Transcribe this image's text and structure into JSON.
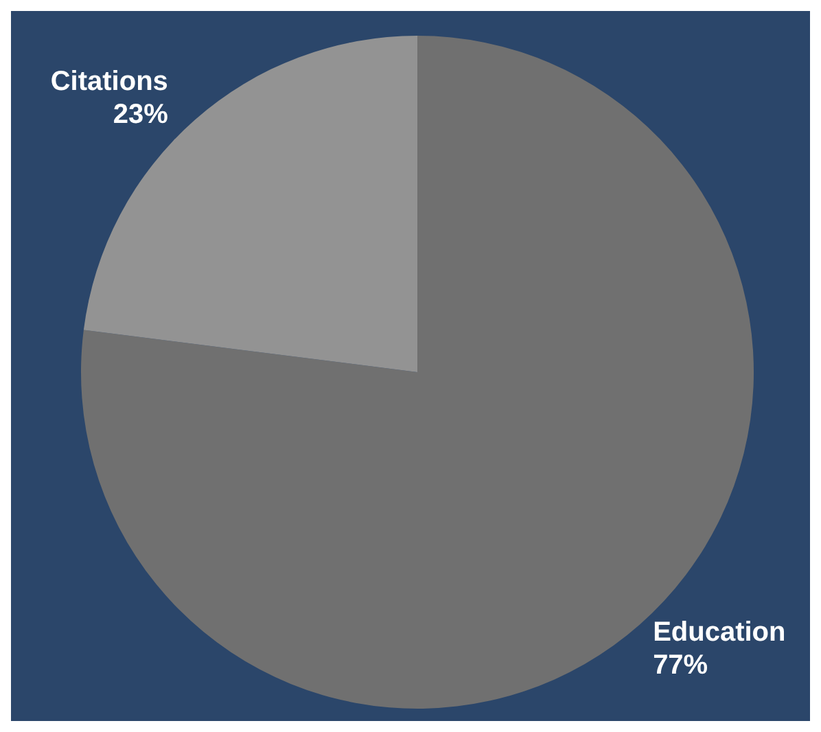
{
  "chart_data": {
    "type": "pie",
    "categories": [
      "Education",
      "Citations"
    ],
    "values": [
      77,
      23
    ],
    "colors": [
      "#707070",
      "#939393"
    ],
    "value_labels": [
      "77%",
      "23%"
    ]
  }
}
